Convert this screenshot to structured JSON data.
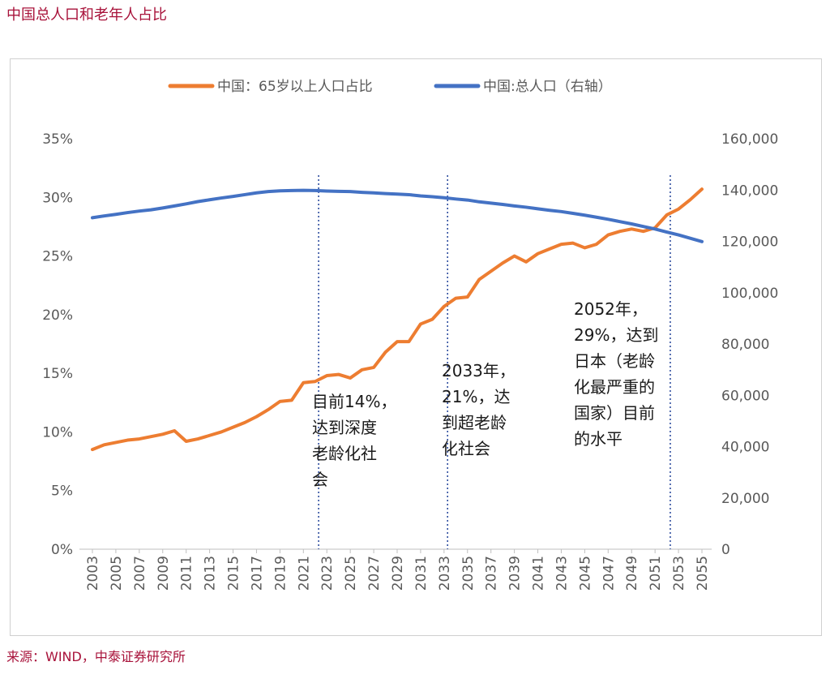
{
  "page_title": "中国总人口和老年人占比",
  "source_note": "来源：WIND，中泰证券研究所",
  "colors": {
    "orange": "#ed7d31",
    "blue": "#4472c4",
    "title_red": "#a8123a",
    "marker": "#2e4d9f"
  },
  "chart_data": {
    "type": "line",
    "title": "",
    "xlabel": "",
    "ylabel": "",
    "x": [
      "2003",
      "2004",
      "2005",
      "2006",
      "2007",
      "2008",
      "2009",
      "2010",
      "2011",
      "2012",
      "2013",
      "2014",
      "2015",
      "2016",
      "2017",
      "2018",
      "2019",
      "2020",
      "2021",
      "2022",
      "2023",
      "2024",
      "2025",
      "2026",
      "2027",
      "2028",
      "2029",
      "2030",
      "2031",
      "2032",
      "2033",
      "2034",
      "2035",
      "2036",
      "2037",
      "2038",
      "2039",
      "2040",
      "2041",
      "2042",
      "2043",
      "2044",
      "2045",
      "2046",
      "2047",
      "2048",
      "2049",
      "2050",
      "2051",
      "2052",
      "2053",
      "2054",
      "2055"
    ],
    "x_tick_labels": [
      "2003",
      "2005",
      "2007",
      "2009",
      "2011",
      "2013",
      "2015",
      "2017",
      "2019",
      "2021",
      "2023",
      "2025",
      "2027",
      "2029",
      "2031",
      "2033",
      "2035",
      "2037",
      "2039",
      "2041",
      "2043",
      "2045",
      "2047",
      "2049",
      "2051",
      "2053",
      "2055"
    ],
    "y_left_ticks": [
      "0%",
      "5%",
      "10%",
      "15%",
      "20%",
      "25%",
      "30%",
      "35%"
    ],
    "y_right_ticks": [
      "0",
      "20,000",
      "40,000",
      "60,000",
      "80,000",
      "100,000",
      "120,000",
      "140,000",
      "160,000"
    ],
    "ylim_left": [
      0,
      35
    ],
    "ylim_right": [
      0,
      160000
    ],
    "series": [
      {
        "name": "中国：65岁以上人口占比",
        "axis": "left",
        "values": [
          8.5,
          8.9,
          9.1,
          9.3,
          9.4,
          9.6,
          9.8,
          10.1,
          9.2,
          9.4,
          9.7,
          10.0,
          10.4,
          10.8,
          11.3,
          11.9,
          12.6,
          12.7,
          14.2,
          14.3,
          14.8,
          14.9,
          14.6,
          15.3,
          15.5,
          16.8,
          17.7,
          17.7,
          19.2,
          19.6,
          20.7,
          21.4,
          21.5,
          23.0,
          23.7,
          24.4,
          25.0,
          24.5,
          25.2,
          25.6,
          26.0,
          26.1,
          25.7,
          26.0,
          26.8,
          27.1,
          27.3,
          27.1,
          27.4,
          28.5,
          29.0,
          29.8,
          30.7
        ]
      },
      {
        "name": "中国:总人口（右轴）",
        "axis": "right",
        "values": [
          129200,
          129900,
          130500,
          131200,
          131800,
          132300,
          133000,
          133800,
          134600,
          135500,
          136200,
          136900,
          137500,
          138200,
          138900,
          139400,
          139700,
          139800,
          139900,
          139800,
          139600,
          139500,
          139400,
          139100,
          138900,
          138600,
          138400,
          138200,
          137700,
          137400,
          137000,
          136500,
          136100,
          135400,
          134900,
          134400,
          133800,
          133300,
          132700,
          132100,
          131600,
          130900,
          130200,
          129400,
          128600,
          127700,
          126800,
          125800,
          124800,
          123600,
          122500,
          121200,
          119900
        ]
      }
    ],
    "legend": {
      "position": "top",
      "entries": [
        "中国：65岁以上人口占比",
        "中国:总人口（右轴）"
      ]
    },
    "reference_lines": [
      "2022",
      "2033",
      "2052"
    ],
    "annotations": [
      {
        "at": "2022",
        "lines": [
          "目前14%，",
          "达到深度",
          "老龄化社",
          "会"
        ]
      },
      {
        "at": "2033",
        "lines": [
          "2033年，",
          "21%，达",
          "到超老龄",
          "化社会"
        ]
      },
      {
        "at": "2052",
        "lines": [
          "2052年，",
          "29%，达到",
          "日本（老龄",
          "化最严重的",
          "国家）目前",
          "的水平"
        ]
      }
    ],
    "grid": false
  }
}
